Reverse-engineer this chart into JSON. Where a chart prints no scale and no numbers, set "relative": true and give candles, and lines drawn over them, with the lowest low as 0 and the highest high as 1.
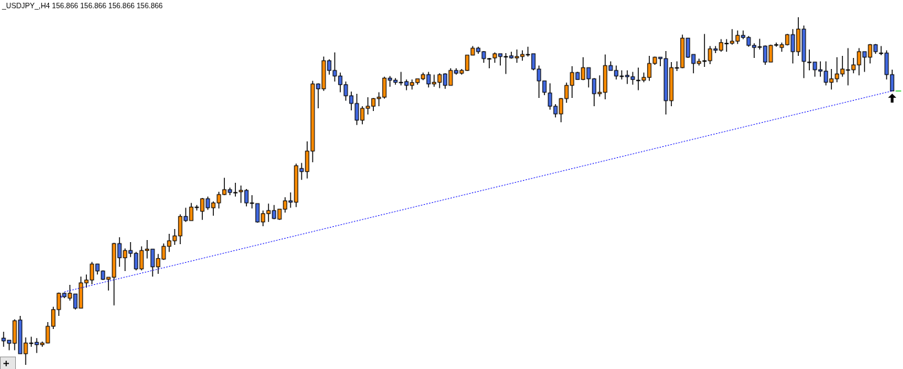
{
  "chart_data": {
    "type": "candlestick",
    "title": "_USDJPY_,H4  156.866 156.866 156.866 156.866",
    "relative": true,
    "categories": [
      null,
      null,
      null,
      null,
      null,
      null,
      null,
      null,
      null,
      null,
      null,
      null,
      null,
      null,
      null,
      null,
      null,
      null,
      null,
      null,
      null,
      null,
      null,
      null,
      null,
      null,
      null,
      null,
      null,
      null,
      null,
      null,
      null,
      null,
      null,
      null,
      null,
      null,
      null,
      null,
      null,
      null,
      null,
      null,
      null,
      null,
      null,
      null,
      null,
      null,
      null,
      null,
      null,
      null,
      null,
      null,
      null,
      null,
      null,
      null,
      null,
      null,
      null,
      null,
      null,
      null,
      null,
      null,
      null,
      null,
      null,
      null,
      null,
      null,
      null,
      null,
      null,
      null,
      null,
      null,
      null,
      null,
      null,
      null,
      null,
      null,
      null,
      null,
      null,
      null,
      null,
      null,
      null,
      null,
      null,
      null,
      null,
      null,
      null,
      null,
      null,
      null,
      null,
      null,
      null,
      null,
      null,
      null,
      null,
      null,
      null,
      null,
      null,
      null,
      null,
      null,
      null,
      null,
      null,
      null,
      null,
      null,
      null,
      null,
      null,
      null,
      null,
      null,
      null,
      null,
      null,
      null,
      null,
      null,
      null,
      null,
      null,
      null,
      null,
      null,
      null,
      null,
      null,
      null,
      null,
      null,
      null,
      null,
      null,
      null,
      null,
      null,
      null,
      null,
      null,
      null,
      null,
      null,
      null,
      null,
      null,
      null
    ],
    "ohlc": [
      [
        0.077,
        0.095,
        0.052,
        0.069
      ],
      [
        0.071,
        0.071,
        0.042,
        0.062
      ],
      [
        0.062,
        0.131,
        0.042,
        0.127
      ],
      [
        0.129,
        0.141,
        0.032,
        0.032
      ],
      [
        0.032,
        0.079,
        0,
        0.063
      ],
      [
        0.063,
        0.081,
        0.052,
        0.063
      ],
      [
        0.065,
        0.077,
        0.034,
        0.058
      ],
      [
        0.058,
        0.067,
        0.052,
        0.063
      ],
      [
        0.063,
        0.123,
        0.062,
        0.111
      ],
      [
        0.111,
        0.167,
        0.103,
        0.159
      ],
      [
        0.159,
        0.208,
        0.141,
        0.206
      ],
      [
        0.206,
        0.208,
        0.192,
        0.196
      ],
      [
        0.192,
        0.23,
        0.185,
        0.206
      ],
      [
        0.204,
        0.204,
        0.159,
        0.163
      ],
      [
        0.163,
        0.254,
        0.163,
        0.236
      ],
      [
        0.236,
        0.26,
        0.222,
        0.244
      ],
      [
        0.244,
        0.296,
        0.232,
        0.29
      ],
      [
        0.29,
        0.29,
        0.26,
        0.27
      ],
      [
        0.27,
        0.272,
        0.244,
        0.246
      ],
      [
        0.246,
        0.252,
        0.214,
        0.252
      ],
      [
        0.252,
        0.351,
        0.171,
        0.349
      ],
      [
        0.349,
        0.367,
        0.282,
        0.308
      ],
      [
        0.308,
        0.335,
        0.27,
        0.329
      ],
      [
        0.329,
        0.353,
        0.31,
        0.321
      ],
      [
        0.321,
        0.325,
        0.272,
        0.276
      ],
      [
        0.276,
        0.341,
        0.272,
        0.329
      ],
      [
        0.329,
        0.359,
        0.306,
        0.333
      ],
      [
        0.333,
        0.333,
        0.254,
        0.282
      ],
      [
        0.282,
        0.319,
        0.262,
        0.306
      ],
      [
        0.304,
        0.349,
        0.302,
        0.341
      ],
      [
        0.341,
        0.377,
        0.325,
        0.357
      ],
      [
        0.357,
        0.391,
        0.345,
        0.371
      ],
      [
        0.371,
        0.433,
        0.347,
        0.427
      ],
      [
        0.427,
        0.452,
        0.411,
        0.415
      ],
      [
        0.415,
        0.466,
        0.415,
        0.454
      ],
      [
        0.454,
        0.46,
        0.444,
        0.454
      ],
      [
        0.442,
        0.48,
        0.417,
        0.478
      ],
      [
        0.478,
        0.484,
        0.446,
        0.452
      ],
      [
        0.452,
        0.47,
        0.429,
        0.466
      ],
      [
        0.466,
        0.498,
        0.45,
        0.49
      ],
      [
        0.49,
        0.538,
        0.488,
        0.504
      ],
      [
        0.504,
        0.51,
        0.488,
        0.496
      ],
      [
        0.496,
        0.524,
        0.484,
        0.496
      ],
      [
        0.498,
        0.516,
        0.466,
        0.502
      ],
      [
        0.502,
        0.506,
        0.456,
        0.466
      ],
      [
        0.466,
        0.488,
        0.45,
        0.466
      ],
      [
        0.464,
        0.464,
        0.409,
        0.411
      ],
      [
        0.411,
        0.444,
        0.399,
        0.435
      ],
      [
        0.435,
        0.464,
        0.411,
        0.444
      ],
      [
        0.444,
        0.46,
        0.419,
        0.421
      ],
      [
        0.419,
        0.448,
        0.417,
        0.448
      ],
      [
        0.448,
        0.482,
        0.438,
        0.472
      ],
      [
        0.472,
        0.496,
        0.452,
        0.468
      ],
      [
        0.468,
        0.579,
        0.454,
        0.573
      ],
      [
        0.565,
        0.581,
        0.532,
        0.556
      ],
      [
        0.556,
        0.643,
        0.536,
        0.615
      ],
      [
        0.615,
        0.817,
        0.583,
        0.808
      ],
      [
        0.808,
        0.81,
        0.738,
        0.794
      ],
      [
        0.794,
        0.887,
        0.788,
        0.875
      ],
      [
        0.875,
        0.879,
        0.835,
        0.847
      ],
      [
        0.847,
        0.899,
        0.815,
        0.831
      ],
      [
        0.831,
        0.841,
        0.784,
        0.806
      ],
      [
        0.806,
        0.815,
        0.76,
        0.774
      ],
      [
        0.774,
        0.786,
        0.732,
        0.752
      ],
      [
        0.752,
        0.78,
        0.69,
        0.704
      ],
      [
        0.704,
        0.744,
        0.692,
        0.738
      ],
      [
        0.738,
        0.77,
        0.72,
        0.744
      ],
      [
        0.744,
        0.768,
        0.73,
        0.766
      ],
      [
        0.766,
        0.784,
        0.744,
        0.77
      ],
      [
        0.77,
        0.829,
        0.766,
        0.825
      ],
      [
        0.825,
        0.831,
        0.8,
        0.819
      ],
      [
        0.819,
        0.825,
        0.806,
        0.813
      ],
      [
        0.813,
        0.843,
        0.804,
        0.813
      ],
      [
        0.815,
        0.821,
        0.79,
        0.804
      ],
      [
        0.804,
        0.821,
        0.792,
        0.812
      ],
      [
        0.812,
        0.823,
        0.806,
        0.823
      ],
      [
        0.823,
        0.841,
        0.819,
        0.835
      ],
      [
        0.835,
        0.843,
        0.798,
        0.808
      ],
      [
        0.808,
        0.835,
        0.8,
        0.813
      ],
      [
        0.813,
        0.839,
        0.796,
        0.835
      ],
      [
        0.837,
        0.839,
        0.794,
        0.804
      ],
      [
        0.804,
        0.853,
        0.804,
        0.847
      ],
      [
        0.847,
        0.853,
        0.835,
        0.839
      ],
      [
        0.839,
        0.851,
        0.835,
        0.847
      ],
      [
        0.847,
        0.891,
        0.845,
        0.891
      ],
      [
        0.891,
        0.917,
        0.891,
        0.911
      ],
      [
        0.911,
        0.915,
        0.895,
        0.901
      ],
      [
        0.901,
        0.903,
        0.869,
        0.881
      ],
      [
        0.881,
        0.883,
        0.853,
        0.881
      ],
      [
        0.883,
        0.899,
        0.869,
        0.895
      ],
      [
        0.895,
        0.895,
        0.861,
        0.887
      ],
      [
        0.887,
        0.897,
        0.837,
        0.887
      ],
      [
        0.889,
        0.901,
        0.881,
        0.883
      ],
      [
        0.883,
        0.907,
        0.869,
        0.887
      ],
      [
        0.887,
        0.905,
        0.875,
        0.893
      ],
      [
        0.893,
        0.915,
        0.887,
        0.893
      ],
      [
        0.895,
        0.895,
        0.847,
        0.851
      ],
      [
        0.851,
        0.861,
        0.768,
        0.817
      ],
      [
        0.817,
        0.817,
        0.776,
        0.784
      ],
      [
        0.782,
        0.81,
        0.734,
        0.744
      ],
      [
        0.744,
        0.75,
        0.712,
        0.722
      ],
      [
        0.722,
        0.768,
        0.698,
        0.766
      ],
      [
        0.766,
        0.812,
        0.754,
        0.804
      ],
      [
        0.804,
        0.859,
        0.768,
        0.841
      ],
      [
        0.841,
        0.843,
        0.821,
        0.821
      ],
      [
        0.821,
        0.885,
        0.819,
        0.855
      ],
      [
        0.855,
        0.855,
        0.798,
        0.823
      ],
      [
        0.823,
        0.825,
        0.744,
        0.78
      ],
      [
        0.78,
        0.833,
        0.772,
        0.784
      ],
      [
        0.784,
        0.893,
        0.764,
        0.861
      ],
      [
        0.861,
        0.873,
        0.847,
        0.847
      ],
      [
        0.847,
        0.861,
        0.821,
        0.831
      ],
      [
        0.831,
        0.847,
        0.821,
        0.831
      ],
      [
        0.833,
        0.847,
        0.808,
        0.829
      ],
      [
        0.829,
        0.843,
        0.806,
        0.821
      ],
      [
        0.819,
        0.855,
        0.79,
        0.819
      ],
      [
        0.819,
        0.841,
        0.813,
        0.827
      ],
      [
        0.827,
        0.889,
        0.817,
        0.867
      ],
      [
        0.867,
        0.887,
        0.863,
        0.885
      ],
      [
        0.885,
        0.885,
        0.859,
        0.881
      ],
      [
        0.881,
        0.903,
        0.72,
        0.76
      ],
      [
        0.76,
        0.871,
        0.744,
        0.855
      ],
      [
        0.855,
        0.873,
        0.845,
        0.855
      ],
      [
        0.855,
        0.95,
        0.853,
        0.94
      ],
      [
        0.94,
        0.94,
        0.883,
        0.885
      ],
      [
        0.893,
        0.893,
        0.839,
        0.867
      ],
      [
        0.867,
        0.881,
        0.861,
        0.873
      ],
      [
        0.873,
        0.952,
        0.857,
        0.875
      ],
      [
        0.875,
        0.917,
        0.865,
        0.909
      ],
      [
        0.909,
        0.917,
        0.897,
        0.905
      ],
      [
        0.905,
        0.937,
        0.901,
        0.927
      ],
      [
        0.925,
        0.937,
        0.901,
        0.925
      ],
      [
        0.925,
        0.966,
        0.921,
        0.931
      ],
      [
        0.931,
        0.962,
        0.923,
        0.948
      ],
      [
        0.948,
        0.962,
        0.937,
        0.942
      ],
      [
        0.942,
        0.946,
        0.915,
        0.919
      ],
      [
        0.919,
        0.925,
        0.883,
        0.913
      ],
      [
        0.915,
        0.938,
        0.907,
        0.915
      ],
      [
        0.917,
        0.919,
        0.863,
        0.871
      ],
      [
        0.871,
        0.921,
        0.871,
        0.919
      ],
      [
        0.921,
        0.927,
        0.915,
        0.921
      ],
      [
        0.913,
        0.927,
        0.901,
        0.921
      ],
      [
        0.921,
        0.952,
        0.919,
        0.95
      ],
      [
        0.95,
        0.966,
        0.867,
        0.901
      ],
      [
        0.901,
        1,
        0.889,
        0.966
      ],
      [
        0.966,
        0.976,
        0.825,
        0.873
      ],
      [
        0.871,
        0.907,
        0.847,
        0.871
      ],
      [
        0.871,
        0.871,
        0.829,
        0.849
      ],
      [
        0.849,
        0.873,
        0.829,
        0.845
      ],
      [
        0.845,
        0.873,
        0.804,
        0.813
      ],
      [
        0.813,
        0.851,
        0.792,
        0.823
      ],
      [
        0.823,
        0.885,
        0.813,
        0.837
      ],
      [
        0.837,
        0.889,
        0.829,
        0.851
      ],
      [
        0.849,
        0.911,
        0.804,
        0.849
      ],
      [
        0.849,
        0.883,
        0.839,
        0.863
      ],
      [
        0.863,
        0.911,
        0.833,
        0.901
      ],
      [
        0.901,
        0.901,
        0.843,
        0.885
      ],
      [
        0.885,
        0.923,
        0.867,
        0.921
      ],
      [
        0.921,
        0.923,
        0.895,
        0.901
      ],
      [
        0.897,
        0.917,
        0.891,
        0.897
      ],
      [
        0.897,
        0.905,
        0.821,
        0.835
      ],
      [
        0.835,
        0.849,
        0.788,
        0.788
      ]
    ],
    "colors": [
      "#4169e1",
      "#4169e1",
      "#ff8c00",
      "#4169e1",
      "#ff8c00",
      "#000000",
      "#4169e1",
      "#ff8c00",
      "#ff8c00",
      "#ff8c00",
      "#ff8c00",
      "#4169e1",
      "#ff8c00",
      "#4169e1",
      "#ff8c00",
      "#ff8c00",
      "#ff8c00",
      "#4169e1",
      "#4169e1",
      "#ff8c00",
      "#ff8c00",
      "#4169e1",
      "#ff8c00",
      "#4169e1",
      "#4169e1",
      "#ff8c00",
      "#ff8c00",
      "#4169e1",
      "#ff8c00",
      "#ff8c00",
      "#ff8c00",
      "#ff8c00",
      "#ff8c00",
      "#4169e1",
      "#ff8c00",
      "#000000",
      "#ff8c00",
      "#4169e1",
      "#ff8c00",
      "#ff8c00",
      "#ff8c00",
      "#4169e1",
      "#000000",
      "#ff8c00",
      "#4169e1",
      "#000000",
      "#4169e1",
      "#ff8c00",
      "#ff8c00",
      "#4169e1",
      "#ff8c00",
      "#ff8c00",
      "#4169e1",
      "#ff8c00",
      "#4169e1",
      "#ff8c00",
      "#ff8c00",
      "#4169e1",
      "#ff8c00",
      "#4169e1",
      "#4169e1",
      "#4169e1",
      "#4169e1",
      "#4169e1",
      "#4169e1",
      "#ff8c00",
      "#ff8c00",
      "#ff8c00",
      "#ff8c00",
      "#ff8c00",
      "#4169e1",
      "#4169e1",
      "#000000",
      "#4169e1",
      "#ff8c00",
      "#ff8c00",
      "#ff8c00",
      "#4169e1",
      "#ff8c00",
      "#ff8c00",
      "#4169e1",
      "#ff8c00",
      "#4169e1",
      "#ff8c00",
      "#ff8c00",
      "#ff8c00",
      "#4169e1",
      "#4169e1",
      "#000000",
      "#ff8c00",
      "#4169e1",
      "#000000",
      "#4169e1",
      "#ff8c00",
      "#ff8c00",
      "#000000",
      "#4169e1",
      "#4169e1",
      "#4169e1",
      "#4169e1",
      "#4169e1",
      "#ff8c00",
      "#ff8c00",
      "#ff8c00",
      "#4169e1",
      "#ff8c00",
      "#4169e1",
      "#4169e1",
      "#ff8c00",
      "#ff8c00",
      "#4169e1",
      "#4169e1",
      "#000000",
      "#4169e1",
      "#4169e1",
      "#000000",
      "#ff8c00",
      "#ff8c00",
      "#ff8c00",
      "#4169e1",
      "#4169e1",
      "#ff8c00",
      "#000000",
      "#ff8c00",
      "#4169e1",
      "#4169e1",
      "#ff8c00",
      "#ff8c00",
      "#ff8c00",
      "#4169e1",
      "#ff8c00",
      "#000000",
      "#ff8c00",
      "#ff8c00",
      "#4169e1",
      "#4169e1",
      "#4169e1",
      "#000000",
      "#4169e1",
      "#ff8c00",
      "#000000",
      "#ff8c00",
      "#ff8c00",
      "#4169e1",
      "#ff8c00",
      "#4169e1",
      "#000000",
      "#4169e1",
      "#4169e1",
      "#4169e1",
      "#ff8c00",
      "#ff8c00",
      "#ff8c00",
      "#000000",
      "#ff8c00",
      "#ff8c00",
      "#4169e1",
      "#ff8c00",
      "#4169e1",
      "#000000",
      "#4169e1",
      "#4169e1"
    ],
    "series": [
      {
        "type": "line",
        "color": "#0000ff",
        "line_style": "dotted",
        "values": [
          null,
          null,
          null,
          null,
          null,
          null,
          null,
          null,
          null,
          null,
          null,
          0.21,
          null,
          null,
          null,
          null,
          null,
          null,
          null,
          null,
          null,
          null,
          null,
          null,
          null,
          null,
          null,
          null,
          null,
          null,
          null,
          null,
          null,
          null,
          null,
          null,
          null,
          null,
          null,
          null,
          null,
          null,
          null,
          null,
          null,
          null,
          null,
          null,
          null,
          null,
          null,
          null,
          null,
          null,
          null,
          null,
          null,
          null,
          null,
          null,
          null,
          null,
          null,
          null,
          null,
          null,
          null,
          null,
          null,
          null,
          null,
          null,
          null,
          null,
          null,
          null,
          null,
          null,
          null,
          null,
          null,
          null,
          null,
          null,
          null,
          null,
          null,
          null,
          null,
          null,
          null,
          null,
          null,
          null,
          null,
          null,
          null,
          null,
          null,
          null,
          null,
          null,
          null,
          null,
          null,
          null,
          null,
          null,
          null,
          null,
          null,
          null,
          null,
          null,
          null,
          null,
          null,
          null,
          null,
          null,
          null,
          null,
          null,
          null,
          null,
          null,
          null,
          null,
          null,
          null,
          null,
          null,
          null,
          null,
          null,
          null,
          null,
          null,
          null,
          null,
          null,
          null,
          null,
          null,
          null,
          null,
          null,
          null,
          null,
          null,
          null,
          null,
          null,
          null,
          null,
          null,
          null,
          null,
          null,
          null,
          null,
          0.788
        ]
      }
    ]
  }
}
